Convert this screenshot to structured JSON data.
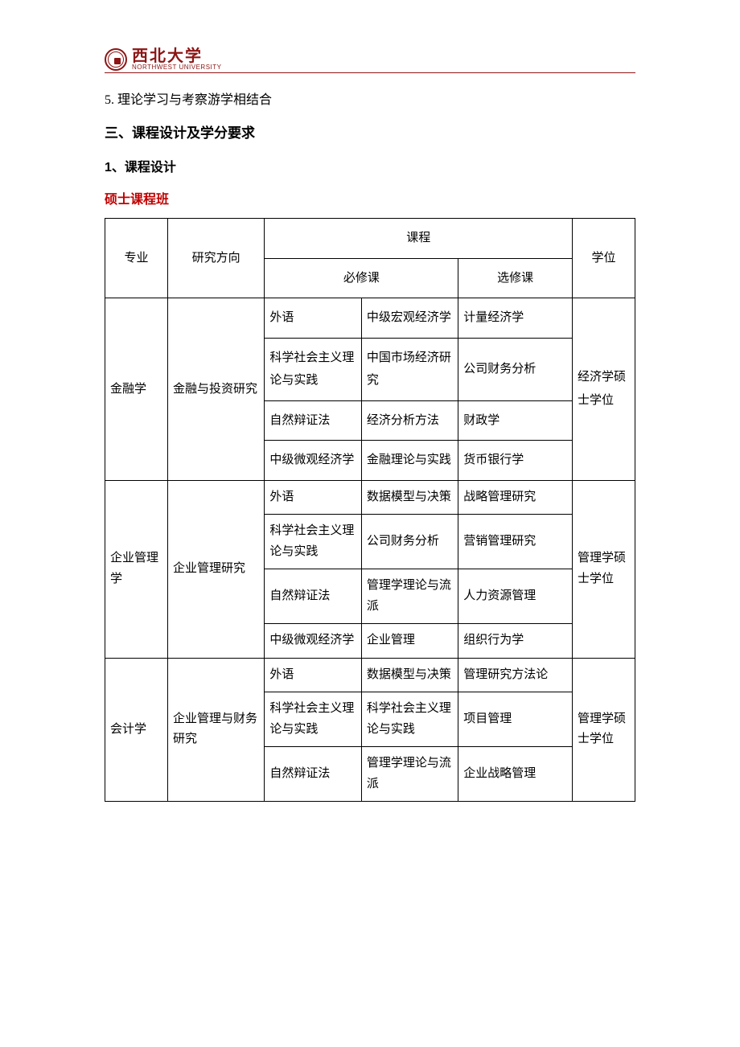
{
  "header": {
    "logo_cn": "西北大学",
    "logo_en": "NORTHWEST UNIVERSITY",
    "accent_color": "#8d1515"
  },
  "body": {
    "line5": "5. 理论学习与考察游学相结合",
    "section3": "三、课程设计及学分要求",
    "sub1": "1、课程设计",
    "sub1_title": "硕士课程班"
  },
  "table": {
    "headers": {
      "major": "专业",
      "direction": "研究方向",
      "course": "课程",
      "required": "必修课",
      "elective": "选修课",
      "degree": "学位"
    },
    "rows": {
      "fin": {
        "major": "金融学",
        "direction": "金融与投资研究",
        "r1": {
          "a": "外语",
          "b": "中级宏观经济学",
          "c": "计量经济学"
        },
        "r2": {
          "a": "科学社会主义理论与实践",
          "b": "中国市场经济研究",
          "c": "公司财务分析"
        },
        "r3": {
          "a": "自然辩证法",
          "b": "经济分析方法",
          "c": "财政学"
        },
        "r4": {
          "a": "中级微观经济学",
          "b": "金融理论与实践",
          "c": "货币银行学"
        },
        "degree": "经济学硕士学位"
      },
      "mgmt": {
        "major": "企业管理学",
        "direction": "企业管理研究",
        "r1": {
          "a": "外语",
          "b": "数据模型与决策",
          "c": "战略管理研究"
        },
        "r2": {
          "a": "科学社会主义理论与实践",
          "b": "公司财务分析",
          "c": "营销管理研究"
        },
        "r3": {
          "a": "自然辩证法",
          "b": "管理学理论与流派",
          "c": "人力资源管理"
        },
        "r4": {
          "a": "中级微观经济学",
          "b": "企业管理",
          "c": "组织行为学"
        },
        "degree": "管理学硕士学位"
      },
      "acc": {
        "major": "会计学",
        "direction": "企业管理与财务研究",
        "r1": {
          "a": "外语",
          "b": "数据模型与决策",
          "c": "管理研究方法论"
        },
        "r2": {
          "a": "科学社会主义理论与实践",
          "b": "科学社会主义理论与实践",
          "c": "项目管理"
        },
        "r3": {
          "a": "自然辩证法",
          "b": "管理学理论与流派",
          "c": "企业战略管理"
        },
        "degree": "管理学硕士学位"
      }
    }
  }
}
